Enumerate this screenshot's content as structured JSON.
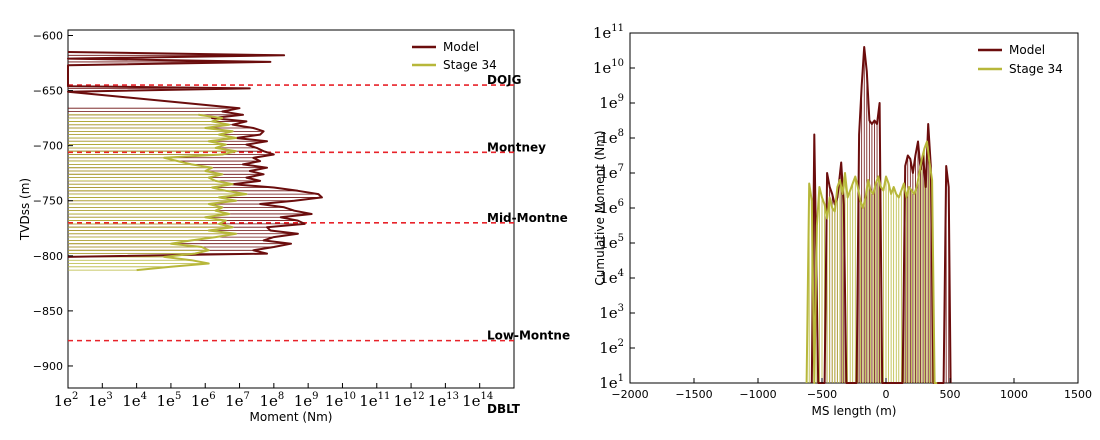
{
  "colors": {
    "model": "#6b0d0d",
    "stage": "#b7b73a",
    "formation_line": "#e8232a"
  },
  "legend": {
    "model": "Model",
    "stage": "Stage 34"
  },
  "chart_data": [
    {
      "type": "line",
      "xlabel": "Moment (Nm)",
      "ylabel": "TVDss (m)",
      "xscale": "log",
      "xlim_exp": [
        2,
        15
      ],
      "ylim": [
        -920,
        -595
      ],
      "x_tick_exponents": [
        2,
        3,
        4,
        5,
        6,
        7,
        8,
        9,
        10,
        11,
        12,
        13,
        14
      ],
      "y_ticks": [
        -600,
        -650,
        -700,
        -750,
        -800,
        -850,
        -900
      ],
      "legend_placement": "top-right",
      "formations": [
        {
          "name": "DOJG",
          "depth": -645
        },
        {
          "name": "Montney",
          "depth": -706
        },
        {
          "name": "Mid-Montne",
          "depth": -770
        },
        {
          "name": "Low-Montne",
          "depth": -877
        },
        {
          "name": "DBLT",
          "depth": -920
        }
      ],
      "series": [
        {
          "name": "Model",
          "depth": [
            -615,
            -618,
            -621,
            -624,
            -627,
            -630,
            -646,
            -648,
            -651,
            -666,
            -669,
            -672,
            -675,
            -678,
            -681,
            -684,
            -687,
            -690,
            -693,
            -696,
            -699,
            -702,
            -705,
            -708,
            -711,
            -714,
            -717,
            -720,
            -723,
            -726,
            -729,
            -732,
            -735,
            -738,
            -741,
            -744,
            -747,
            -750,
            -753,
            -756,
            -759,
            -762,
            -765,
            -768,
            -771,
            -774,
            -777,
            -780,
            -783,
            -786,
            -789,
            -792,
            -795,
            -798,
            -801
          ],
          "log_moment": [
            2,
            8.3,
            2,
            7.9,
            2,
            2,
            2,
            7.3,
            2,
            7.0,
            6.5,
            7.1,
            6.2,
            7.2,
            6.8,
            7.4,
            7.7,
            7.6,
            6.9,
            7.8,
            7.2,
            7.5,
            7.7,
            8.0,
            7.4,
            7.6,
            7.1,
            7.8,
            7.3,
            7.7,
            7.2,
            7.6,
            6.8,
            8.0,
            8.7,
            9.3,
            9.4,
            8.6,
            7.6,
            8.3,
            8.6,
            9.1,
            8.2,
            8.7,
            8.9,
            7.8,
            7.9,
            8.7,
            8.0,
            7.7,
            8.5,
            8.0,
            7.4,
            7.8,
            2
          ]
        },
        {
          "name": "Stage 34",
          "depth": [
            -672,
            -675,
            -678,
            -681,
            -684,
            -687,
            -690,
            -693,
            -696,
            -699,
            -702,
            -705,
            -708,
            -711,
            -714,
            -717,
            -720,
            -723,
            -726,
            -729,
            -732,
            -735,
            -738,
            -741,
            -744,
            -747,
            -750,
            -753,
            -756,
            -759,
            -762,
            -765,
            -768,
            -771,
            -774,
            -777,
            -780,
            -783,
            -786,
            -789,
            -792,
            -795,
            -798,
            -801,
            -804,
            -807,
            -810,
            -813
          ],
          "log_moment": [
            5.8,
            6.5,
            6.2,
            6.7,
            6.0,
            6.8,
            6.4,
            6.9,
            6.1,
            6.6,
            6.3,
            6.9,
            6.5,
            4.8,
            5.2,
            5.6,
            6.2,
            6.0,
            6.5,
            6.1,
            6.3,
            6.8,
            6.2,
            6.6,
            7.2,
            6.4,
            6.9,
            6.1,
            6.5,
            6.3,
            6.7,
            6.0,
            6.6,
            6.4,
            6.8,
            6.1,
            6.9,
            6.3,
            5.6,
            5.0,
            5.9,
            6.1,
            5.7,
            4.8,
            5.6,
            6.1,
            5.0,
            4.0
          ]
        }
      ]
    },
    {
      "type": "line",
      "xlabel": "MS length (m)",
      "ylabel": "Cumulative Moment (Nm)",
      "yscale": "log",
      "xlim": [
        -2000,
        1500
      ],
      "ylim_exp": [
        1,
        11
      ],
      "x_ticks": [
        -2000,
        -1500,
        -1000,
        -500,
        0,
        500,
        1000,
        1500
      ],
      "y_tick_exponents": [
        1,
        2,
        3,
        4,
        5,
        6,
        7,
        8,
        9,
        10,
        11
      ],
      "legend_placement": "top-right",
      "series": [
        {
          "name": "Model",
          "x": [
            -580,
            -560,
            -530,
            -500,
            -480,
            -460,
            -440,
            -420,
            -400,
            -380,
            -350,
            -330,
            -310,
            -290,
            -270,
            -250,
            -230,
            -210,
            -190,
            -170,
            -150,
            -130,
            -110,
            -90,
            -70,
            -50,
            -30,
            -10,
            10,
            30,
            50,
            70,
            90,
            110,
            130,
            150,
            170,
            190,
            210,
            230,
            250,
            270,
            290,
            310,
            330,
            350,
            370,
            390,
            410,
            430,
            450,
            470,
            490,
            505
          ],
          "log_y": [
            1,
            8.1,
            1,
            1,
            1,
            7.0,
            6.6,
            6.4,
            6.1,
            6.3,
            7.3,
            6.1,
            1,
            1,
            1,
            1,
            1,
            8.1,
            9.5,
            10.6,
            9.9,
            8.5,
            8.4,
            8.5,
            8.4,
            9.0,
            1,
            1,
            1,
            1,
            1,
            1,
            1,
            1,
            1,
            7.2,
            7.5,
            7.4,
            7.0,
            7.5,
            7.9,
            7.1,
            7.5,
            6.6,
            8.4,
            7.2,
            1,
            1,
            1,
            1,
            1,
            7.2,
            6.6,
            1
          ]
        },
        {
          "name": "Stage 34",
          "x": [
            -620,
            -600,
            -580,
            -560,
            -540,
            -520,
            -500,
            -480,
            -460,
            -440,
            -420,
            -400,
            -380,
            -360,
            -340,
            -320,
            -300,
            -280,
            -260,
            -240,
            -220,
            -200,
            -180,
            -160,
            -140,
            -120,
            -100,
            -80,
            -60,
            -40,
            -20,
            0,
            20,
            40,
            60,
            80,
            100,
            120,
            140,
            160,
            180,
            200,
            220,
            240,
            260,
            280,
            300,
            320,
            340,
            360,
            380,
            400
          ],
          "log_y": [
            1,
            6.7,
            6.2,
            1,
            5.5,
            6.6,
            6.3,
            6.1,
            5.7,
            6.3,
            6.0,
            5.9,
            6.6,
            6.8,
            6.4,
            7.0,
            6.3,
            6.5,
            6.7,
            6.9,
            6.6,
            6.2,
            6.0,
            6.3,
            6.8,
            6.5,
            6.4,
            6.7,
            6.9,
            6.6,
            6.5,
            6.9,
            6.7,
            6.4,
            6.6,
            6.4,
            6.3,
            6.5,
            6.7,
            6.3,
            6.6,
            6.5,
            6.4,
            6.6,
            7.0,
            7.4,
            7.7,
            7.9,
            7.3,
            6.8,
            1,
            1
          ]
        }
      ]
    }
  ]
}
